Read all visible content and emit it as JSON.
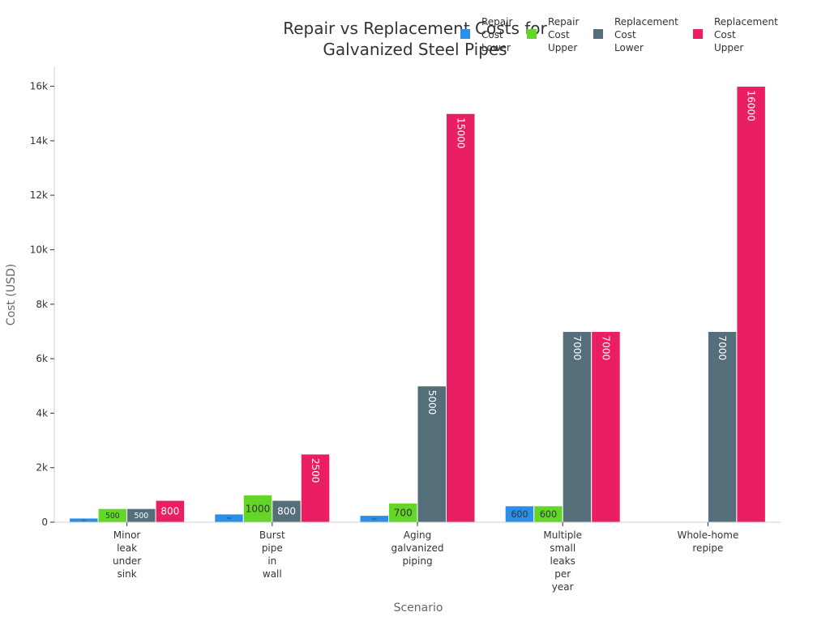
{
  "colors": {
    "repair_lower": "#2b8fe8",
    "repair_upper": "#63d628",
    "replacement_lower": "#546e7a",
    "replacement_upper": "#e91e63",
    "axis": "#333333",
    "title": "#333333",
    "axis_title": "#666666"
  },
  "chart_data": {
    "type": "bar",
    "title_lines": [
      "Repair vs Replacement Costs for",
      "Galvanized Steel Pipes"
    ],
    "xlabel": "Scenario",
    "ylabel": "Cost (USD)",
    "ylim": [
      0,
      16700
    ],
    "yticks": [
      0,
      2000,
      4000,
      6000,
      8000,
      10000,
      12000,
      14000,
      16000
    ],
    "ytick_labels": [
      "0",
      "2k",
      "4k",
      "6k",
      "8k",
      "10k",
      "12k",
      "14k",
      "16k"
    ],
    "grid": false,
    "legend_position": "top-right",
    "categories": [
      [
        "Minor",
        "leak",
        "under",
        "sink"
      ],
      [
        "Burst",
        "pipe",
        "in",
        "wall"
      ],
      [
        "Aging",
        "galvanized",
        "piping"
      ],
      [
        "Multiple",
        "small",
        "leaks",
        "per",
        "year"
      ],
      [
        "Whole-home",
        "repipe"
      ]
    ],
    "series": [
      {
        "key": "repair_lower",
        "name": "Repair Cost Lower",
        "legend_lines": [
          "Repair",
          "Cost",
          "Lower"
        ],
        "values": [
          150,
          300,
          250,
          600,
          null
        ],
        "labels": [
          "150",
          "300",
          "250",
          "600",
          ""
        ]
      },
      {
        "key": "repair_upper",
        "name": "Repair Cost Upper",
        "legend_lines": [
          "Repair",
          "Cost",
          "Upper"
        ],
        "values": [
          500,
          1000,
          700,
          600,
          null
        ],
        "labels": [
          "500",
          "1000",
          "700",
          "600",
          ""
        ]
      },
      {
        "key": "replacement_lower",
        "name": "Replacement Cost Lower",
        "legend_lines": [
          "Replacement",
          "Cost",
          "Lower"
        ],
        "values": [
          500,
          800,
          5000,
          7000,
          7000
        ],
        "labels": [
          "500",
          "800",
          "5000",
          "7000",
          "7000"
        ]
      },
      {
        "key": "replacement_upper",
        "name": "Replacement Cost Upper",
        "legend_lines": [
          "Replacement",
          "Cost",
          "Upper"
        ],
        "values": [
          800,
          2500,
          15000,
          7000,
          16000
        ],
        "labels": [
          "800",
          "2500",
          "15000",
          "7000",
          "16000"
        ]
      }
    ]
  }
}
